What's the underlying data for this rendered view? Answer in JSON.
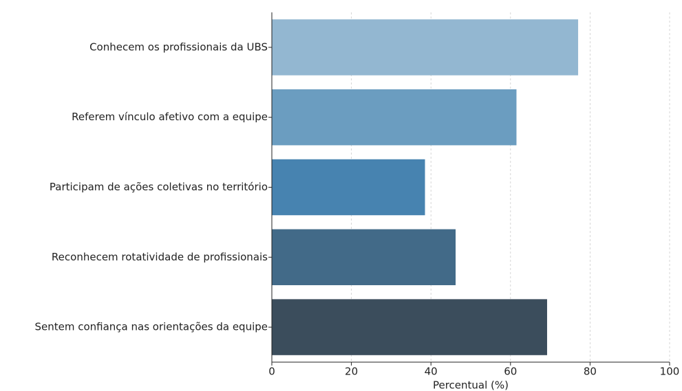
{
  "chart_data": {
    "type": "bar",
    "orientation": "horizontal",
    "categories": [
      "Conhecem os profissionais da UBS",
      "Referem vínculo afetivo com a equipe",
      "Participam de ações coletivas no território",
      "Reconhecem rotatividade de profissionais",
      "Sentem confiança nas orientações da equipe"
    ],
    "values": [
      77,
      61.5,
      38.5,
      46.2,
      69.2
    ],
    "colors": [
      "#93b7d1",
      "#6b9dc0",
      "#4783b0",
      "#426a88",
      "#3b4d5c"
    ],
    "xlabel": "Percentual (%)",
    "xlim": [
      0,
      100
    ],
    "xticks": [
      0,
      20,
      40,
      60,
      80,
      100
    ],
    "grid": true
  }
}
